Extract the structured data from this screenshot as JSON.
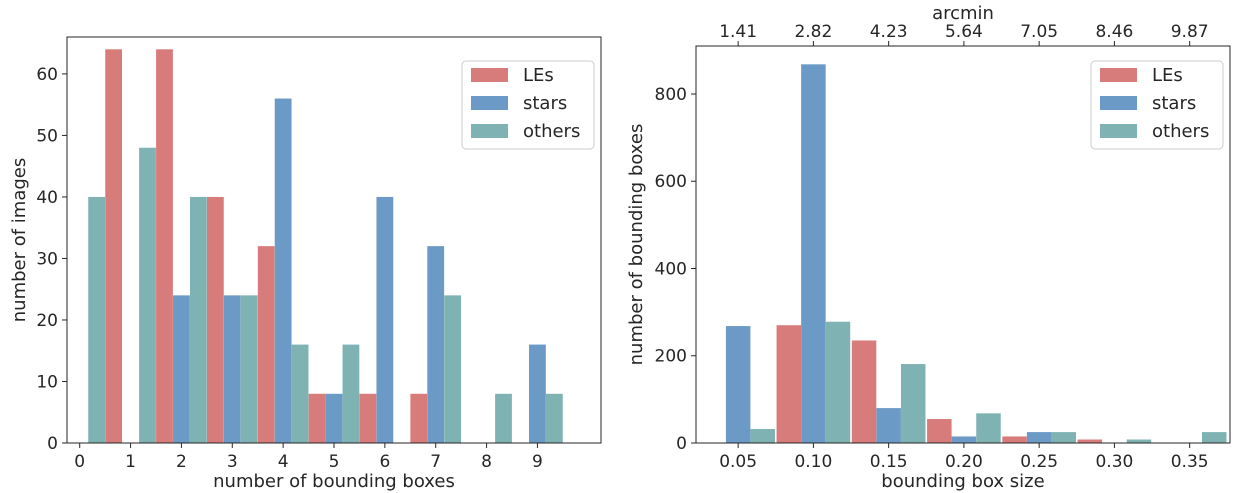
{
  "chart_data": [
    {
      "type": "bar",
      "xlabel": "number of bounding boxes",
      "ylabel": "number of images",
      "x_ticks": [
        "0",
        "1",
        "2",
        "3",
        "4",
        "5",
        "6",
        "7",
        "8",
        "9"
      ],
      "ylim": [
        0,
        66
      ],
      "y_ticks": [
        "0",
        "10",
        "20",
        "30",
        "40",
        "50",
        "60"
      ],
      "legend_position": "top-right",
      "series": [
        {
          "name": "LEs",
          "color": "#d87b7b",
          "x": [
            1,
            2,
            3,
            4,
            5,
            6,
            7
          ],
          "values": [
            64,
            64,
            40,
            32,
            8,
            8,
            8
          ]
        },
        {
          "name": "stars",
          "color": "#6b9ac6",
          "x": [
            2,
            3,
            4,
            5,
            6,
            7,
            9
          ],
          "values": [
            24,
            24,
            56,
            8,
            40,
            32,
            16
          ]
        },
        {
          "name": "others",
          "color": "#7fb3b3",
          "x": [
            0,
            1,
            2,
            3,
            4,
            5,
            7,
            8,
            9
          ],
          "values": [
            40,
            48,
            40,
            24,
            16,
            16,
            24,
            8,
            8
          ]
        }
      ]
    },
    {
      "type": "bar",
      "xlabel": "bounding box size",
      "ylabel": "number of bounding boxes",
      "top_xlabel": "arcmin",
      "top_x_ticks": [
        "1.41",
        "2.82",
        "4.23",
        "5.64",
        "7.05",
        "8.46",
        "9.87"
      ],
      "x_ticks": [
        "0.05",
        "0.10",
        "0.15",
        "0.20",
        "0.25",
        "0.30",
        "0.35"
      ],
      "ylim": [
        0,
        910
      ],
      "y_ticks": [
        "0",
        "200",
        "400",
        "600",
        "800"
      ],
      "legend_position": "top-right",
      "series": [
        {
          "name": "LEs",
          "color": "#d87b7b",
          "x": [
            0.1,
            0.15,
            0.2,
            0.25,
            0.3
          ],
          "values": [
            270,
            235,
            55,
            15,
            8
          ]
        },
        {
          "name": "stars",
          "color": "#6b9ac6",
          "x": [
            0.05,
            0.1,
            0.15,
            0.2,
            0.25
          ],
          "values": [
            268,
            868,
            80,
            15,
            25
          ]
        },
        {
          "name": "others",
          "color": "#7fb3b3",
          "x": [
            0.05,
            0.1,
            0.15,
            0.2,
            0.25,
            0.3,
            0.35
          ],
          "values": [
            32,
            278,
            181,
            68,
            25,
            8,
            25
          ]
        }
      ]
    }
  ]
}
